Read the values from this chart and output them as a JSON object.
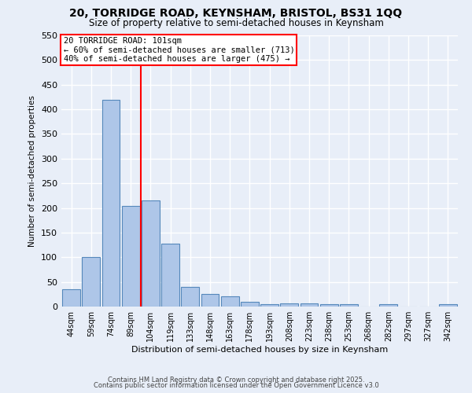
{
  "title_line1": "20, TORRIDGE ROAD, KEYNSHAM, BRISTOL, BS31 1QQ",
  "title_line2": "Size of property relative to semi-detached houses in Keynsham",
  "categories": [
    "44sqm",
    "59sqm",
    "74sqm",
    "89sqm",
    "104sqm",
    "119sqm",
    "133sqm",
    "148sqm",
    "163sqm",
    "178sqm",
    "193sqm",
    "208sqm",
    "223sqm",
    "238sqm",
    "253sqm",
    "268sqm",
    "282sqm",
    "297sqm",
    "327sqm",
    "342sqm"
  ],
  "values": [
    35,
    101,
    420,
    204,
    215,
    128,
    40,
    25,
    20,
    9,
    5,
    7,
    7,
    5,
    5,
    0,
    4,
    0,
    0,
    4
  ],
  "bar_color": "#aec6e8",
  "bar_edge_color": "#5588bb",
  "background_color": "#e8eef8",
  "grid_color": "#ffffff",
  "ylabel": "Number of semi-detached properties",
  "xlabel": "Distribution of semi-detached houses by size in Keynsham",
  "annotation_title": "20 TORRIDGE ROAD: 101sqm",
  "annotation_line1": "← 60% of semi-detached houses are smaller (713)",
  "annotation_line2": "40% of semi-detached houses are larger (475) →",
  "footer_line1": "Contains HM Land Registry data © Crown copyright and database right 2025.",
  "footer_line2": "Contains public sector information licensed under the Open Government Licence v3.0",
  "ylim": [
    0,
    550
  ],
  "yticks": [
    0,
    50,
    100,
    150,
    200,
    250,
    300,
    350,
    400,
    450,
    500,
    550
  ]
}
